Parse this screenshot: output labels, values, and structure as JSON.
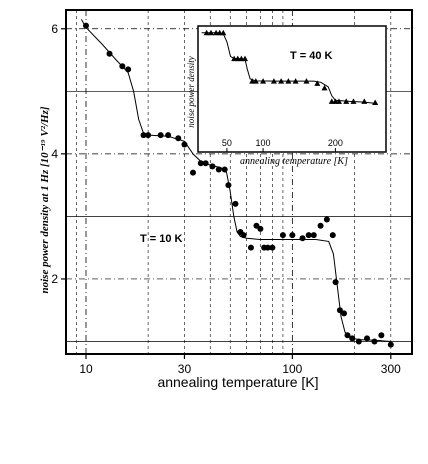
{
  "chart_data": [
    {
      "type": "scatter",
      "role": "main",
      "xlabel": "annealing temperature [K]",
      "ylabel": "noise power density at 1 Hz [10⁻¹⁹ V²/Hz]",
      "xscale": "log",
      "xlim": [
        8,
        380
      ],
      "ylim": [
        0.8,
        6.3
      ],
      "xticks": [
        10,
        30,
        100,
        300
      ],
      "xtick_labels": [
        "10",
        "30",
        "100",
        "300"
      ],
      "yticks": [
        2,
        4,
        6
      ],
      "ytick_labels": [
        "2",
        "4",
        "6"
      ],
      "grid": true,
      "annotation": "T = 10 K",
      "marker": "filled-circle",
      "series": [
        {
          "x": [
            10,
            13,
            15,
            16,
            19,
            20,
            23,
            25,
            28,
            30,
            33,
            36,
            38,
            41,
            44,
            47,
            49,
            53,
            56,
            58,
            63,
            67,
            70,
            73,
            76,
            80,
            90,
            100,
            112,
            120,
            127,
            137,
            147,
            157,
            162,
            170,
            178,
            185,
            195,
            210,
            230,
            250,
            270,
            300
          ],
          "y": [
            6.05,
            5.6,
            5.4,
            5.35,
            4.3,
            4.3,
            4.3,
            4.3,
            4.25,
            4.15,
            3.7,
            3.85,
            3.85,
            3.8,
            3.75,
            3.75,
            3.5,
            3.2,
            2.75,
            2.7,
            2.5,
            2.85,
            2.8,
            2.5,
            2.5,
            2.5,
            2.7,
            2.7,
            2.65,
            2.7,
            2.7,
            2.85,
            2.95,
            2.7,
            1.95,
            1.5,
            1.45,
            1.1,
            1.05,
            1.0,
            1.05,
            1.0,
            1.1,
            0.95
          ]
        }
      ],
      "fit_curve": {
        "x": [
          9.5,
          10,
          12,
          14,
          16,
          17,
          18,
          19,
          20,
          25,
          30,
          33,
          36,
          40,
          45,
          48,
          50,
          52,
          54,
          56,
          60,
          70,
          80,
          100,
          130,
          150,
          158,
          165,
          172,
          180,
          190,
          210,
          250,
          300
        ],
        "y": [
          6.15,
          6.02,
          5.75,
          5.5,
          5.3,
          5.0,
          4.55,
          4.33,
          4.3,
          4.28,
          4.2,
          4.0,
          3.88,
          3.82,
          3.78,
          3.7,
          3.4,
          3.0,
          2.75,
          2.68,
          2.65,
          2.63,
          2.63,
          2.63,
          2.63,
          2.6,
          2.4,
          1.9,
          1.4,
          1.15,
          1.06,
          1.03,
          1.02,
          1.0
        ]
      }
    },
    {
      "type": "scatter",
      "role": "inset",
      "xlabel": "annealing temperature [K]",
      "ylabel": "noise power density",
      "xlim": [
        10,
        270
      ],
      "ylim": [
        0.7,
        6.3
      ],
      "xticks": [
        50,
        100,
        200
      ],
      "xtick_labels": [
        "50",
        "100",
        "200"
      ],
      "grid": false,
      "annotation": "T = 40 K",
      "marker": "filled-triangle",
      "series": [
        {
          "x": [
            22,
            28,
            35,
            40,
            45,
            60,
            65,
            70,
            75,
            85,
            90,
            100,
            115,
            125,
            135,
            145,
            160,
            175,
            185,
            195,
            200,
            205,
            215,
            225,
            240,
            255
          ],
          "y": [
            6.0,
            6.0,
            6.0,
            6.0,
            6.0,
            4.85,
            4.85,
            4.85,
            4.85,
            3.85,
            3.85,
            3.85,
            3.85,
            3.85,
            3.85,
            3.85,
            3.85,
            3.75,
            3.55,
            2.95,
            2.95,
            2.95,
            2.95,
            2.95,
            2.95,
            2.9
          ]
        }
      ],
      "fit_curve": {
        "x": [
          15,
          22,
          40,
          45,
          50,
          55,
          60,
          70,
          75,
          78,
          82,
          90,
          120,
          150,
          170,
          180,
          190,
          195,
          200,
          220,
          240,
          258
        ],
        "y": [
          6.0,
          6.0,
          6.0,
          5.95,
          5.6,
          4.95,
          4.85,
          4.85,
          4.82,
          4.4,
          3.95,
          3.86,
          3.85,
          3.85,
          3.85,
          3.8,
          3.6,
          3.2,
          3.0,
          2.95,
          2.92,
          2.85
        ]
      }
    }
  ]
}
